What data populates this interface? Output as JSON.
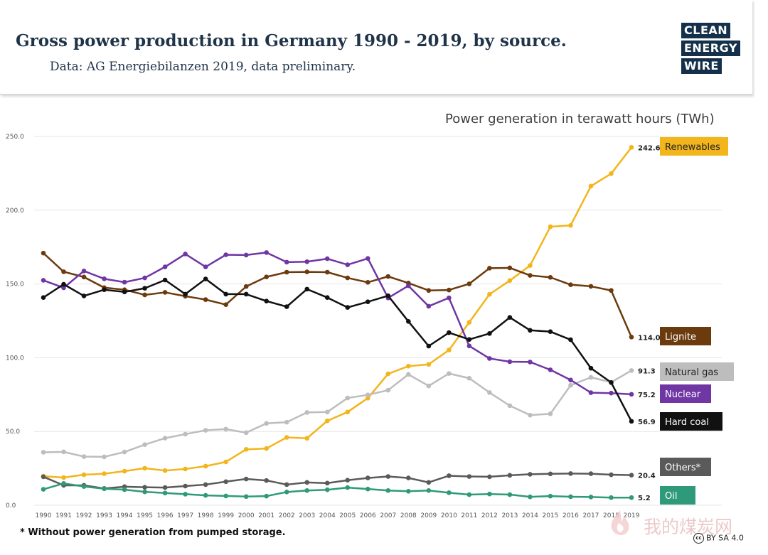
{
  "header": {
    "title": "Gross power production in Germany 1990 - 2019, by source.",
    "subtitle": "Data: AG Energiebilanzen 2019, data preliminary."
  },
  "logo": {
    "line1": "CLEAN",
    "line2": "ENERGY",
    "line3": "WIRE"
  },
  "footnote": "* Without power generation from pumped storage.",
  "license": "BY SA 4.0",
  "watermark": "我的煤炭网",
  "chart_data": {
    "type": "line",
    "title": "Power generation in terawatt hours (TWh)",
    "ylim": [
      0,
      250
    ],
    "yticks": [
      "0.0",
      "50.0",
      "100.0",
      "150.0",
      "200.0",
      "250.0"
    ],
    "grid": true,
    "x": [
      1990,
      1991,
      1992,
      1993,
      1994,
      1995,
      1996,
      1997,
      1998,
      1999,
      2000,
      2001,
      2002,
      2003,
      2004,
      2005,
      2006,
      2007,
      2008,
      2009,
      2010,
      2011,
      2012,
      2013,
      2014,
      2015,
      2016,
      2017,
      2018,
      2019
    ],
    "series": [
      {
        "name": "Renewables",
        "end_label": "242.6",
        "color": "#f2b51c",
        "text_color": "#222222",
        "values": [
          19.7,
          18.8,
          20.7,
          21.4,
          23.1,
          25.1,
          23.5,
          24.6,
          26.5,
          29.4,
          37.9,
          38.5,
          46.0,
          45.4,
          57.2,
          63.2,
          72.6,
          89.1,
          94.3,
          95.5,
          105.2,
          124.0,
          143.0,
          152.3,
          162.5,
          188.8,
          189.7,
          216.3,
          224.8,
          242.6
        ]
      },
      {
        "name": "Lignite",
        "end_label": "114.0",
        "color": "#6b3a0d",
        "text_color": "#ffffff",
        "values": [
          170.9,
          158.3,
          154.7,
          147.5,
          146.1,
          142.6,
          144.3,
          141.7,
          139.4,
          136.0,
          148.3,
          154.8,
          158.0,
          158.2,
          158.0,
          154.1,
          151.1,
          155.1,
          150.6,
          145.6,
          145.9,
          150.1,
          160.7,
          160.9,
          155.8,
          154.5,
          149.5,
          148.4,
          145.6,
          114.0
        ]
      },
      {
        "name": "Natural gas",
        "end_label": "91.3",
        "color": "#bdbdbd",
        "text_color": "#222222",
        "values": [
          35.9,
          36.2,
          33.0,
          32.8,
          36.1,
          41.1,
          45.5,
          48.2,
          50.8,
          51.6,
          49.2,
          55.5,
          56.3,
          62.9,
          63.2,
          72.7,
          74.8,
          78.0,
          88.7,
          80.9,
          89.3,
          86.1,
          76.4,
          67.5,
          61.1,
          62.0,
          81.3,
          86.7,
          83.4,
          91.3
        ]
      },
      {
        "name": "Nuclear",
        "end_label": "75.2",
        "color": "#6f36a4",
        "text_color": "#ffffff",
        "values": [
          152.5,
          147.4,
          158.8,
          153.5,
          151.2,
          154.1,
          161.6,
          170.3,
          161.6,
          169.8,
          169.6,
          171.3,
          164.8,
          165.1,
          167.1,
          163.0,
          167.3,
          140.5,
          148.8,
          134.9,
          140.6,
          108.0,
          99.5,
          97.3,
          97.1,
          91.8,
          84.9,
          76.3,
          76.0,
          75.2
        ]
      },
      {
        "name": "Hard coal",
        "end_label": "56.9",
        "color": "#111111",
        "text_color": "#ffffff",
        "values": [
          140.8,
          149.8,
          141.9,
          146.1,
          144.6,
          147.1,
          152.7,
          143.1,
          153.4,
          143.1,
          143.1,
          138.4,
          134.6,
          146.5,
          140.8,
          134.1,
          137.9,
          142.0,
          124.6,
          107.9,
          117.0,
          112.4,
          116.4,
          127.3,
          118.6,
          117.7,
          112.2,
          92.9,
          83.2,
          56.9
        ]
      },
      {
        "name": "Others*",
        "end_label": "20.4",
        "color": "#5a5a5a",
        "text_color": "#ffffff",
        "values": [
          19.3,
          13.5,
          13.5,
          11.4,
          12.6,
          12.2,
          12.0,
          13.0,
          14.0,
          16.0,
          17.8,
          16.8,
          14.0,
          15.5,
          15.0,
          17.0,
          18.5,
          19.5,
          18.5,
          15.5,
          20.0,
          19.5,
          19.3,
          20.3,
          21.0,
          21.3,
          21.5,
          21.4,
          20.7,
          20.4
        ]
      },
      {
        "name": "Oil",
        "end_label": "5.2",
        "color": "#2e9a7a",
        "text_color": "#ffffff",
        "values": [
          10.8,
          14.8,
          12.7,
          11.2,
          10.6,
          9.1,
          8.3,
          7.5,
          6.7,
          6.3,
          5.9,
          6.2,
          9.0,
          10.0,
          10.5,
          12.0,
          11.0,
          10.0,
          9.5,
          10.0,
          8.5,
          7.2,
          7.6,
          7.2,
          5.7,
          6.2,
          5.8,
          5.6,
          5.2,
          5.2
        ]
      }
    ]
  }
}
